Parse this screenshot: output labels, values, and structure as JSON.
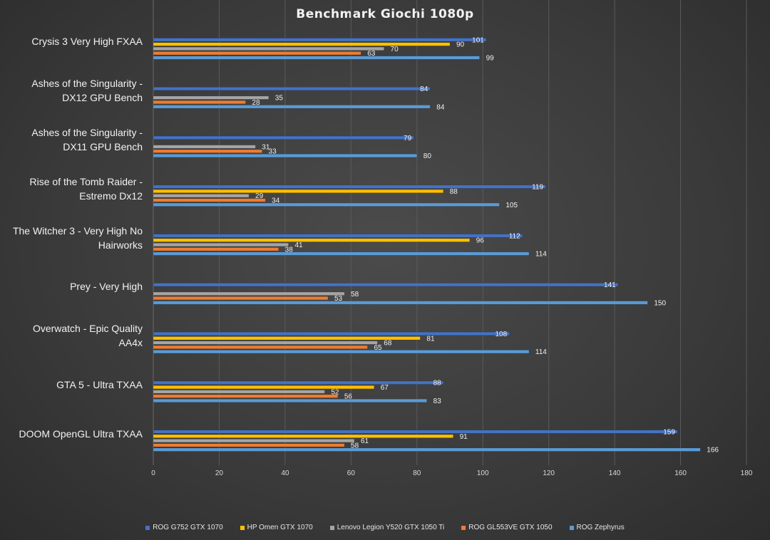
{
  "chart_data": {
    "type": "bar",
    "orientation": "horizontal",
    "title": "Benchmark Giochi 1080p",
    "xlim": [
      0,
      180
    ],
    "x_ticks": [
      0,
      20,
      40,
      60,
      80,
      100,
      120,
      140,
      160,
      180
    ],
    "grid": true,
    "legend_position": "bottom",
    "categories": [
      "Crysis 3 Very High FXAA",
      "Ashes of the Singularity - DX12 GPU Bench",
      "Ashes of the Singularity - DX11 GPU Bench",
      "Rise of the Tomb Raider - Estremo Dx12",
      "The Witcher 3 - Very High No Hairworks",
      "Prey - Very High",
      "Overwatch - Epic Quality AA4x",
      "GTA 5 - Ultra TXAA",
      "DOOM OpenGL Ultra TXAA"
    ],
    "category_lines": [
      [
        "Crysis 3 Very High FXAA"
      ],
      [
        "Ashes of the Singularity -",
        "DX12 GPU Bench"
      ],
      [
        "Ashes of the Singularity -",
        "DX11 GPU Bench"
      ],
      [
        "Rise of the Tomb Raider -",
        "Estremo Dx12"
      ],
      [
        "The Witcher 3 - Very High No",
        "Hairworks"
      ],
      [
        "Prey - Very High"
      ],
      [
        "Overwatch - Epic Quality",
        "AA4x"
      ],
      [
        "GTA 5 - Ultra TXAA"
      ],
      [
        "DOOM OpenGL Ultra TXAA"
      ]
    ],
    "series": [
      {
        "name": "ROG G752 GTX 1070",
        "color": "#4472c4",
        "values": [
          101,
          84,
          79,
          119,
          112,
          141,
          108,
          88,
          159
        ]
      },
      {
        "name": "HP Omen GTX 1070",
        "color": "#ffc000",
        "values": [
          90,
          null,
          null,
          88,
          96,
          null,
          81,
          67,
          91
        ]
      },
      {
        "name": "Lenovo Legion Y520 GTX 1050 Ti",
        "color": "#a5a5a5",
        "values": [
          70,
          35,
          31,
          29,
          41,
          58,
          68,
          52,
          61
        ]
      },
      {
        "name": "ROG GL553VE GTX 1050",
        "color": "#ed7d31",
        "values": [
          63,
          28,
          33,
          34,
          38,
          53,
          65,
          56,
          58
        ]
      },
      {
        "name": "ROG Zephyrus",
        "color": "#5b9bd5",
        "values": [
          99,
          84,
          80,
          105,
          114,
          150,
          114,
          83,
          166
        ]
      }
    ]
  }
}
